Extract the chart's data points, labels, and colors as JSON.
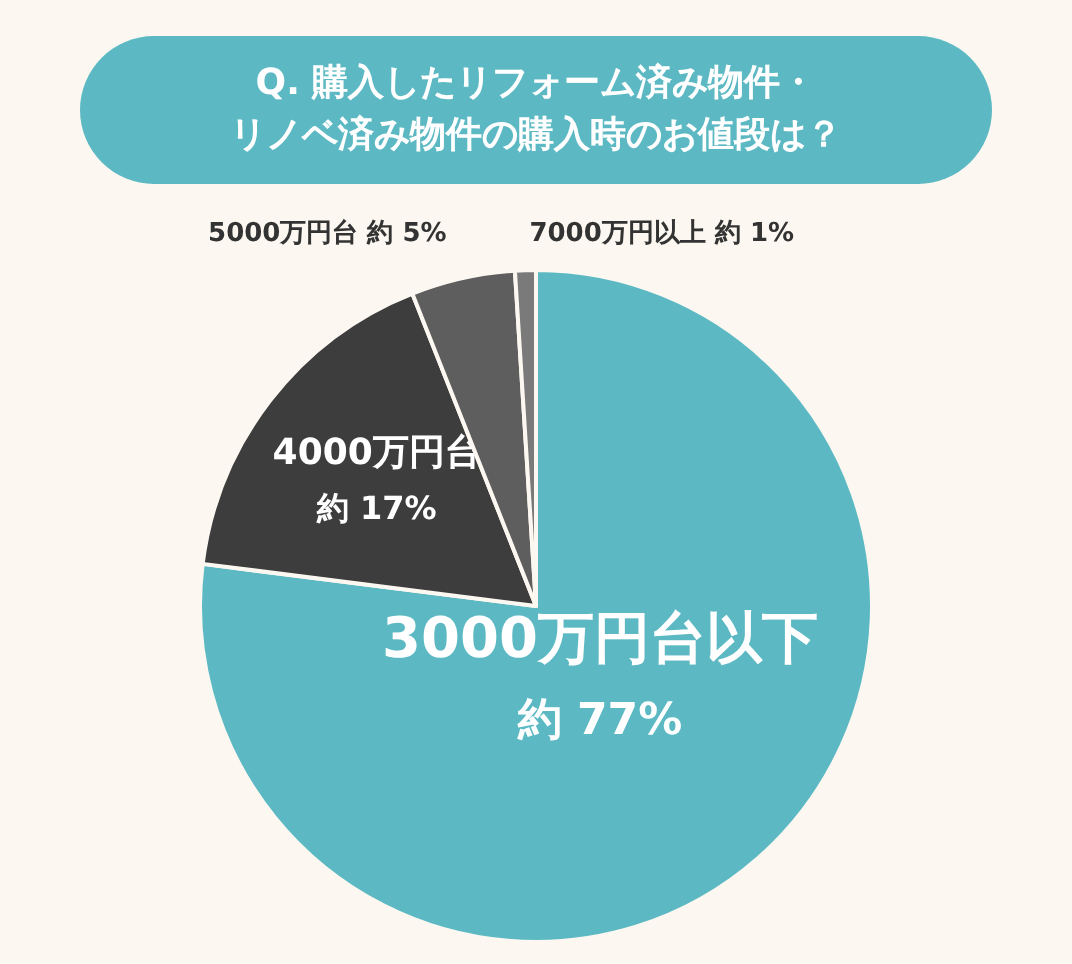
{
  "chart_data": {
    "type": "pie",
    "title": "Q. 購入したリフォーム済み物件・リノベ済み物件の購入時のお値段は？",
    "categories": [
      "3000万円台以下",
      "4000万円台",
      "5000万円台",
      "7000万円以上"
    ],
    "values": [
      77,
      17,
      5,
      1
    ],
    "colors": [
      "#5cb9c3",
      "#3d3d3d",
      "#5e5e5e",
      "#7a7a7a"
    ],
    "value_labels": [
      "約 77%",
      "約 17%",
      "約 5%",
      "約 1%"
    ]
  }
}
